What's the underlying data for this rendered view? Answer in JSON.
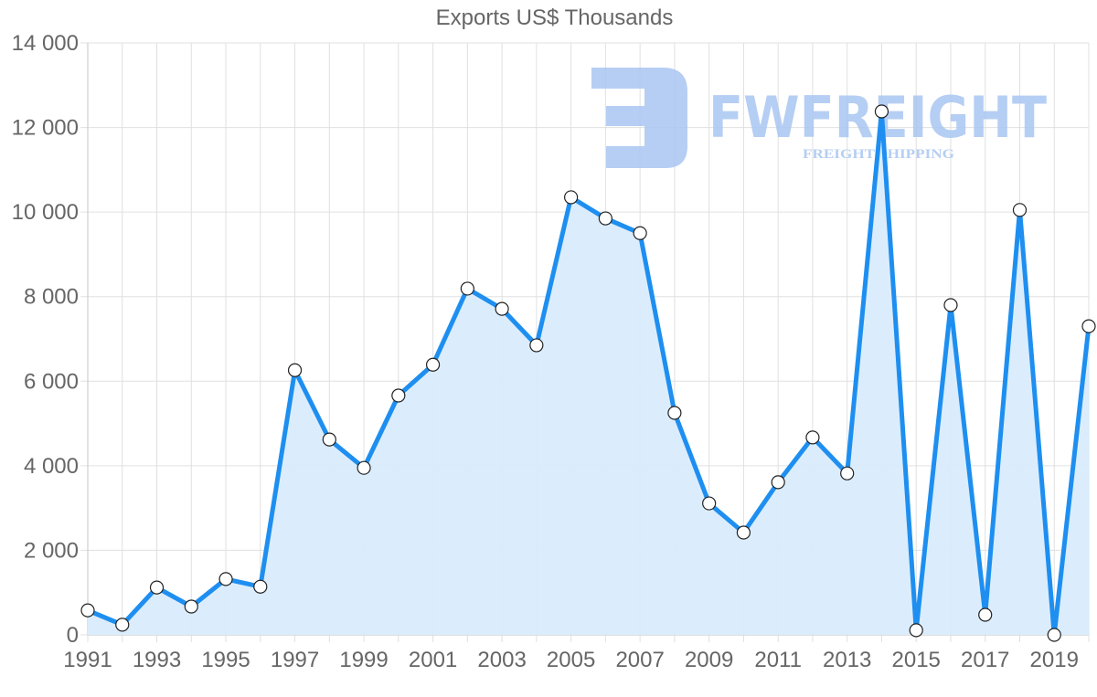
{
  "chart_data": {
    "type": "area",
    "title": "Exports US$ Thousands",
    "xlabel": "",
    "ylabel": "",
    "ylim": [
      0,
      14000
    ],
    "yticks": [
      0,
      2000,
      4000,
      6000,
      8000,
      10000,
      12000,
      14000
    ],
    "ytick_labels": [
      "0",
      "2 000",
      "4 000",
      "6 000",
      "8 000",
      "10 000",
      "12 000",
      "14 000"
    ],
    "xtick_labels": [
      "1991",
      "1993",
      "1995",
      "1997",
      "1999",
      "2001",
      "2003",
      "2005",
      "2007",
      "2009",
      "2011",
      "2013",
      "2015",
      "2017",
      "2019"
    ],
    "grid": true,
    "legend": null,
    "x": [
      1991,
      1992,
      1993,
      1994,
      1995,
      1996,
      1997,
      1998,
      1999,
      2000,
      2001,
      2002,
      2003,
      2004,
      2005,
      2006,
      2007,
      2008,
      2009,
      2010,
      2011,
      2012,
      2013,
      2014,
      2015,
      2016,
      2017,
      2018,
      2019,
      2020
    ],
    "series": [
      {
        "name": "Exports US$ Thousands",
        "values": [
          580,
          240,
          1120,
          670,
          1320,
          1140,
          6260,
          4620,
          3950,
          5660,
          6390,
          8190,
          7710,
          6850,
          10350,
          9850,
          9500,
          5250,
          3110,
          2420,
          3610,
          4670,
          3820,
          12380,
          110,
          7800,
          475,
          10050,
          0,
          7300
        ]
      }
    ],
    "colors": {
      "line": "#1e8ff0",
      "fill": "#d9ecfc",
      "grid": "#e0e0e0",
      "text": "#666666",
      "watermark": "#a9c6f2"
    }
  },
  "watermark": {
    "brand": "FWFREIGHT",
    "tagline": "FREIGHT SHIPPING"
  }
}
